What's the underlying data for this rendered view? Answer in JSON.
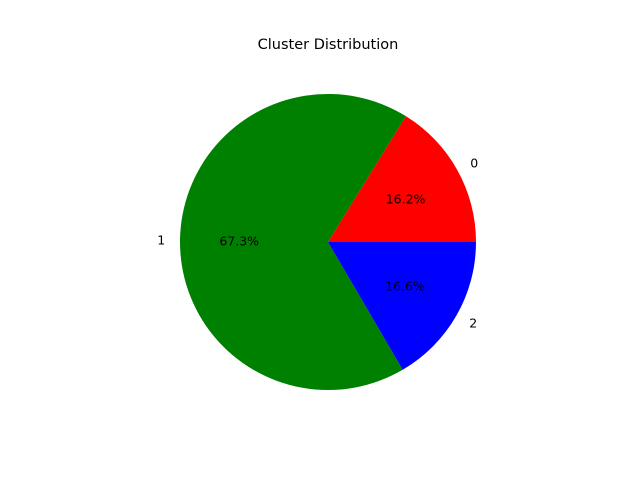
{
  "chart_data": {
    "type": "pie",
    "title": "Cluster Distribution",
    "categories": [
      "0",
      "1",
      "2"
    ],
    "values": [
      16.2,
      67.3,
      16.6
    ],
    "value_labels": [
      "16.2%",
      "67.3%",
      "16.6%"
    ],
    "colors": [
      "#ff0000",
      "#008000",
      "#0000ff"
    ],
    "start_angle": 0,
    "direction": "counterclockwise",
    "legend": "none"
  }
}
